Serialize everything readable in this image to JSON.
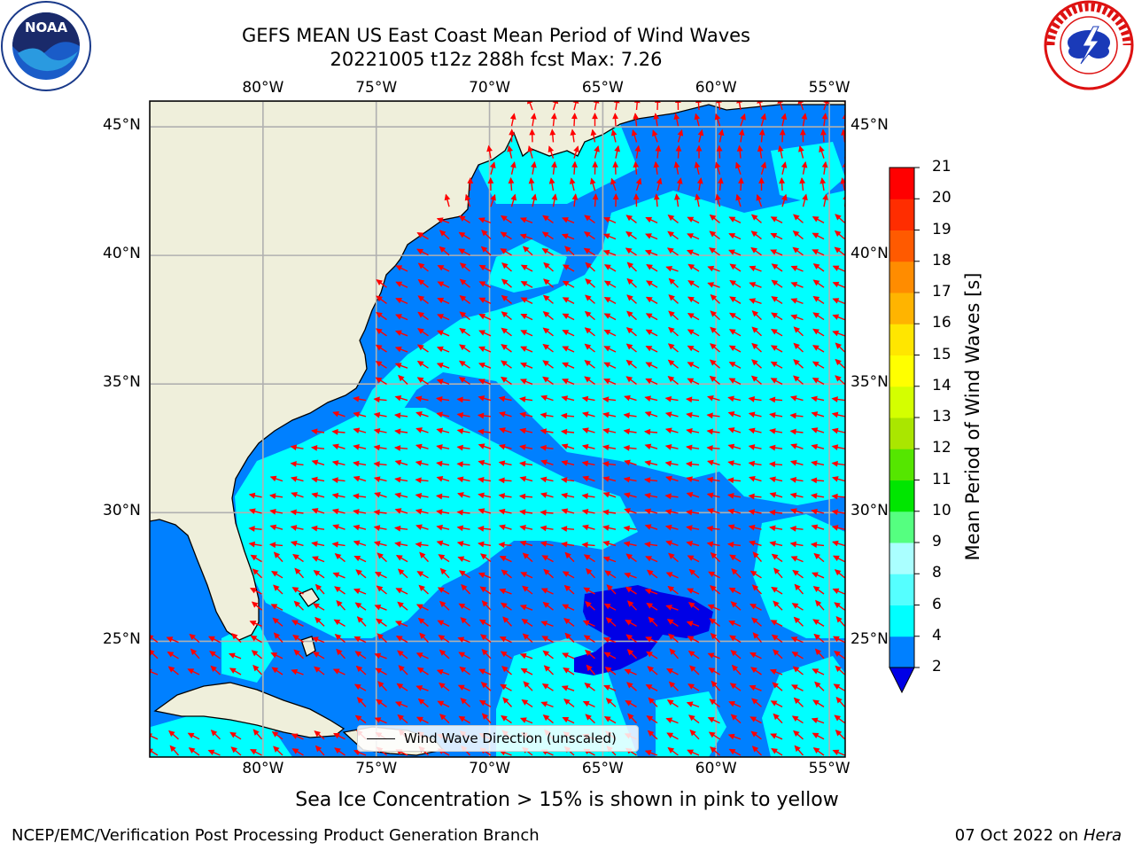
{
  "title": {
    "line1": "GEFS MEAN US East Coast Mean Period of Wind Waves",
    "line2": "20221005 t12z 288h fcst   Max: 7.26"
  },
  "logos": {
    "left": "noaa-logo",
    "left_text": "NOAA",
    "right": "national-weather-service-logo"
  },
  "map": {
    "projection": "plate-carree",
    "lon_range": [
      -85,
      -54.3
    ],
    "lat_range": [
      20.5,
      46
    ],
    "lon_ticks": [
      {
        "value": -80,
        "label": "80°W"
      },
      {
        "value": -75,
        "label": "75°W"
      },
      {
        "value": -70,
        "label": "70°W"
      },
      {
        "value": -65,
        "label": "65°W"
      },
      {
        "value": -60,
        "label": "60°W"
      },
      {
        "value": -55,
        "label": "55°W"
      }
    ],
    "lat_ticks": [
      {
        "value": 45,
        "label": "45°N"
      },
      {
        "value": 40,
        "label": "40°N"
      },
      {
        "value": 35,
        "label": "35°N"
      },
      {
        "value": 30,
        "label": "30°N"
      },
      {
        "value": 25,
        "label": "25°N"
      }
    ],
    "grid": true,
    "land_color": "#efefdb",
    "vector_color": "#ff0000",
    "legend_label": "Wind Wave Direction (unscaled)"
  },
  "colorbar": {
    "title": "Mean Period of Wind Waves [s]",
    "ticks": [
      2,
      4,
      6,
      8,
      9,
      10,
      11,
      12,
      13,
      14,
      15,
      16,
      17,
      18,
      19,
      20,
      21
    ],
    "colors": [
      "#0080ff",
      "#00ffff",
      "#55ffff",
      "#aaffff",
      "#55ff80",
      "#00e600",
      "#55e600",
      "#aae600",
      "#d4ff00",
      "#ffff00",
      "#ffe600",
      "#ffb400",
      "#ff8c00",
      "#ff5a00",
      "#ff2d00",
      "#ff0000"
    ],
    "under_color": "#0000e6"
  },
  "footer": {
    "note": "Sea Ice Concentration > 15% is shown in pink to yellow",
    "left": "NCEP/EMC/Verification Post Processing Product Generation Branch",
    "right_date": "07 Oct 2022 on",
    "right_host": "Hera"
  }
}
